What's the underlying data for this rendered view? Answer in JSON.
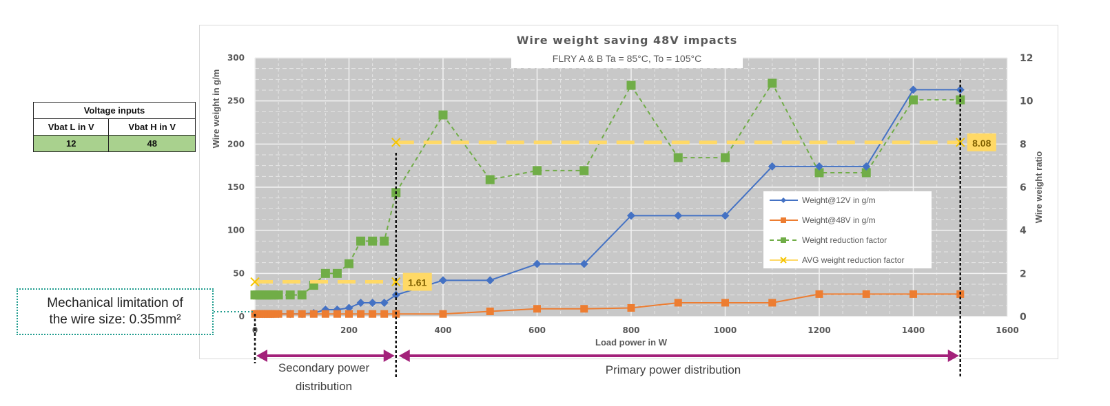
{
  "voltage_table": {
    "title": "Voltage inputs",
    "headers": [
      "Vbat L in V",
      "Vbat H in V"
    ],
    "values": [
      "12",
      "48"
    ]
  },
  "annotation_mech": {
    "line1": "Mechanical limitation of",
    "line2": "the wire size: 0.35mm²"
  },
  "regions": {
    "secondary_line1": "Secondary power",
    "secondary_line2": "distribution",
    "primary": "Primary power distribution",
    "secondary_range_w": [
      0,
      300
    ],
    "primary_range_w": [
      300,
      1500
    ]
  },
  "colors": {
    "blue": "#4472c4",
    "orange": "#ed7d31",
    "green": "#70ad47",
    "yellow": "#ffd966",
    "plot_bg": "#c8c8c8",
    "arrow": "#a3217a"
  },
  "chart_data": {
    "type": "line",
    "title": "Wire weight saving 48V impacts",
    "subtitle": "FLRY A & B Ta = 85°C, To = 105°C",
    "xlabel": "Load power in W",
    "ylabel": "Wire weight in g/m",
    "y2label": "Wire weight ratio",
    "xlim": [
      0,
      1600
    ],
    "ylim": [
      0,
      300
    ],
    "y2lim": [
      0,
      12
    ],
    "xticks": [
      "0",
      "200",
      "400",
      "600",
      "800",
      "1000",
      "1200",
      "1400",
      "1600"
    ],
    "yticks": [
      "0",
      "50",
      "100",
      "150",
      "200",
      "250",
      "300"
    ],
    "y2ticks": [
      "0",
      "2",
      "4",
      "6",
      "8",
      "10",
      "12"
    ],
    "grid": true,
    "legend_position": "center-right",
    "x": [
      0,
      5,
      10,
      15,
      20,
      25,
      30,
      35,
      40,
      50,
      75,
      100,
      125,
      150,
      175,
      200,
      225,
      250,
      275,
      300,
      400,
      500,
      600,
      700,
      800,
      900,
      1000,
      1100,
      1200,
      1300,
      1400,
      1500
    ],
    "series": [
      {
        "name": "Weight@12V in g/m",
        "axis": "left",
        "style": "solid",
        "marker": "diamond",
        "values": [
          3,
          3,
          3,
          3,
          3,
          3,
          3,
          3,
          3,
          3,
          3,
          3,
          4,
          8,
          8,
          10,
          16,
          16,
          16,
          25,
          42,
          42,
          61,
          61,
          117,
          117,
          117,
          174,
          174,
          174,
          263,
          263
        ]
      },
      {
        "name": "Weight@48V in g/m",
        "axis": "left",
        "style": "solid",
        "marker": "square",
        "values": [
          3,
          3,
          3,
          3,
          3,
          3,
          3,
          3,
          3,
          3,
          3,
          3,
          3,
          3,
          3,
          3,
          3,
          3,
          3,
          3,
          3,
          6,
          9,
          9,
          10,
          16,
          16,
          16,
          26,
          26,
          26,
          26
        ]
      },
      {
        "name": "Weight reduction factor",
        "axis": "right",
        "style": "dashed",
        "marker": "square",
        "values": [
          1,
          1,
          1,
          1,
          1,
          1,
          1,
          1,
          1,
          1,
          1,
          1,
          1.45,
          2,
          2,
          2.45,
          3.5,
          3.5,
          3.5,
          5.75,
          9.35,
          6.35,
          6.77,
          6.77,
          10.72,
          7.37,
          7.37,
          10.82,
          6.67,
          6.67,
          10.05,
          10.05
        ]
      },
      {
        "name": "AVG weight reduction factor",
        "axis": "right",
        "style": "dashed",
        "marker": "x",
        "segments": [
          {
            "x": [
              0,
              300
            ],
            "value": 1.61,
            "label": "1.61"
          },
          {
            "x": [
              300,
              1500
            ],
            "value": 8.08,
            "label": "8.08"
          }
        ]
      }
    ]
  }
}
